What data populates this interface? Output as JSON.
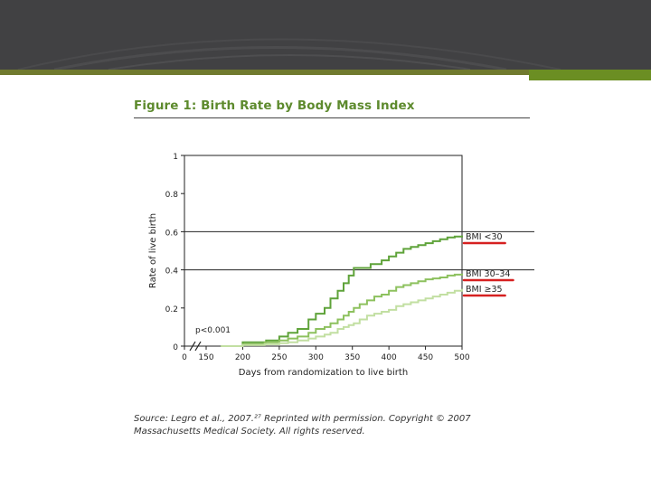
{
  "figure": {
    "title": "Figure 1: Birth Rate by Body Mass Index",
    "source": "Source: Legro et al., 2007.²⁷ Reprinted with permission. Copyright © 2007 Massachusetts Medical Society. All rights reserved."
  },
  "colors": {
    "header": "#414143",
    "accent": "#6b8e23",
    "title": "#5d8a2d",
    "highlight": "#d62020"
  },
  "chart_data": {
    "type": "line",
    "title": "",
    "xlabel": "Days from randomization to live birth",
    "ylabel": "Rate of live birth",
    "xlim": [
      0,
      500
    ],
    "ylim": [
      0,
      1
    ],
    "axis_break": true,
    "x_ticks": [
      "0",
      "150",
      "200",
      "250",
      "300",
      "350",
      "400",
      "450",
      "500"
    ],
    "y_ticks": [
      "0",
      "0.2",
      "0.4",
      "0.6",
      "0.8",
      "1"
    ],
    "gridlines_y": [
      0.4,
      0.6
    ],
    "annotation": "p<0.001",
    "series": [
      {
        "name": "BMI <30",
        "color": "#5fa33a",
        "x": [
          200,
          232,
          250,
          262,
          275,
          290,
          300,
          312,
          320,
          330,
          338,
          345,
          352,
          360,
          375,
          390,
          400,
          410,
          420,
          430,
          440,
          450,
          460,
          470,
          480,
          490,
          500
        ],
        "y": [
          0.02,
          0.03,
          0.05,
          0.07,
          0.09,
          0.14,
          0.17,
          0.2,
          0.25,
          0.29,
          0.33,
          0.37,
          0.41,
          0.41,
          0.43,
          0.45,
          0.47,
          0.49,
          0.51,
          0.52,
          0.53,
          0.54,
          0.55,
          0.56,
          0.57,
          0.575,
          0.58
        ]
      },
      {
        "name": "BMI 30–34",
        "color": "#8dc15e",
        "x": [
          200,
          230,
          250,
          262,
          275,
          290,
          300,
          312,
          320,
          330,
          338,
          345,
          352,
          360,
          370,
          380,
          390,
          400,
          410,
          420,
          430,
          440,
          450,
          460,
          470,
          480,
          490,
          500
        ],
        "y": [
          0.01,
          0.02,
          0.03,
          0.04,
          0.05,
          0.07,
          0.09,
          0.1,
          0.12,
          0.14,
          0.16,
          0.18,
          0.2,
          0.22,
          0.24,
          0.26,
          0.27,
          0.29,
          0.31,
          0.32,
          0.33,
          0.34,
          0.35,
          0.355,
          0.36,
          0.37,
          0.375,
          0.38
        ]
      },
      {
        "name": "BMI ≥35",
        "color": "#c2dfa2",
        "x": [
          200,
          230,
          250,
          262,
          275,
          290,
          300,
          312,
          320,
          330,
          338,
          345,
          352,
          360,
          370,
          380,
          390,
          400,
          410,
          420,
          430,
          440,
          450,
          460,
          470,
          480,
          490,
          500
        ],
        "y": [
          0.005,
          0.01,
          0.015,
          0.02,
          0.03,
          0.04,
          0.05,
          0.06,
          0.07,
          0.09,
          0.1,
          0.11,
          0.12,
          0.14,
          0.16,
          0.17,
          0.18,
          0.19,
          0.21,
          0.22,
          0.23,
          0.24,
          0.25,
          0.26,
          0.27,
          0.28,
          0.29,
          0.3
        ]
      }
    ]
  }
}
